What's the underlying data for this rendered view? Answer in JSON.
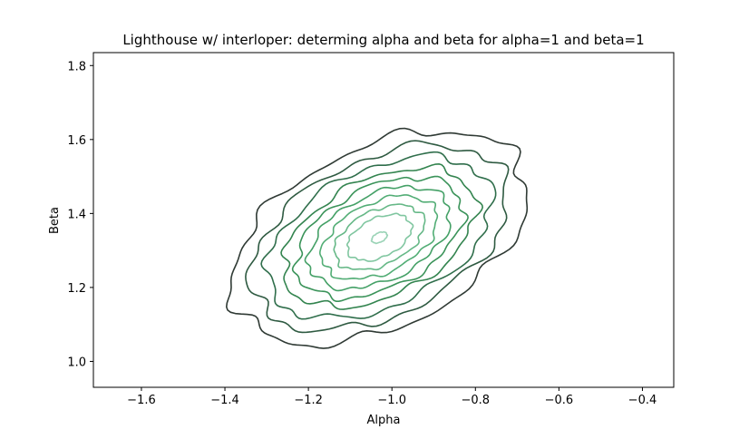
{
  "chart_data": {
    "type": "contour",
    "title": "Lighthouse w/ interloper: determing alpha and beta for alpha=1 and beta=1",
    "xlabel": "Alpha",
    "ylabel": "Beta",
    "xlim": [
      -1.715,
      -0.325
    ],
    "ylim": [
      0.93,
      1.835
    ],
    "xticks": [
      -1.6,
      -1.4,
      -1.2,
      -1.0,
      -0.8,
      -0.6,
      -0.4
    ],
    "xtick_labels": [
      "−1.6",
      "−1.4",
      "−1.2",
      "−1.0",
      "−0.8",
      "−0.6",
      "−0.4"
    ],
    "yticks": [
      1.0,
      1.2,
      1.4,
      1.6,
      1.8
    ],
    "ytick_labels": [
      "1.0",
      "1.2",
      "1.4",
      "1.6",
      "1.8"
    ],
    "grid": false,
    "legend": "none",
    "density_center": [
      -1.03,
      1.335
    ],
    "density_covariance": [
      [
        0.0237,
        0.0082
      ],
      [
        0.0082,
        0.0157
      ]
    ],
    "contour_levels": [
      {
        "mahalanobis_radius": 2.3,
        "color": "#2f3a34"
      },
      {
        "mahalanobis_radius": 2.0,
        "color": "#2e5a41"
      },
      {
        "mahalanobis_radius": 1.75,
        "color": "#2f6e4b"
      },
      {
        "mahalanobis_radius": 1.5,
        "color": "#33844f"
      },
      {
        "mahalanobis_radius": 1.3,
        "color": "#3a9359"
      },
      {
        "mahalanobis_radius": 1.1,
        "color": "#44a066"
      },
      {
        "mahalanobis_radius": 0.9,
        "color": "#52ad75"
      },
      {
        "mahalanobis_radius": 0.7,
        "color": "#66b887"
      },
      {
        "mahalanobis_radius": 0.5,
        "color": "#80c6a0"
      },
      {
        "mahalanobis_radius": 0.12,
        "color": "#9ad3b6"
      }
    ]
  }
}
